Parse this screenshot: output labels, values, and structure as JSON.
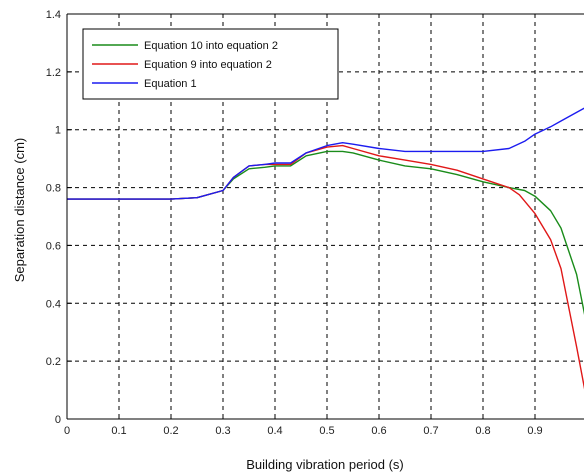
{
  "chart_data": {
    "type": "line",
    "xlabel": "Building vibration period (s)",
    "ylabel": "Separation distance (cm)",
    "xlim": [
      0,
      1.0
    ],
    "ylim": [
      0,
      1.4
    ],
    "x_ticks": [
      "0",
      "0.1",
      "0.2",
      "0.3",
      "0.4",
      "0.5",
      "0.6",
      "0.7",
      "0.8",
      "0.9"
    ],
    "y_ticks": [
      "0",
      "0.2",
      "0.4",
      "0.6",
      "0.8",
      "1",
      "1.2",
      "1.4"
    ],
    "grid": true,
    "legend_position": "top-left",
    "series": [
      {
        "name": "Equation 10 into equation 2",
        "color": "#1a8c1a",
        "x": [
          0,
          0.1,
          0.2,
          0.25,
          0.3,
          0.32,
          0.35,
          0.38,
          0.4,
          0.43,
          0.46,
          0.5,
          0.53,
          0.55,
          0.6,
          0.65,
          0.7,
          0.75,
          0.8,
          0.85,
          0.88,
          0.9,
          0.93,
          0.95,
          0.98,
          1.0
        ],
        "y": [
          0.76,
          0.76,
          0.76,
          0.765,
          0.79,
          0.83,
          0.865,
          0.87,
          0.875,
          0.875,
          0.91,
          0.925,
          0.925,
          0.92,
          0.895,
          0.875,
          0.865,
          0.845,
          0.82,
          0.8,
          0.79,
          0.77,
          0.72,
          0.66,
          0.5,
          0.32
        ]
      },
      {
        "name": "Equation 9 into equation 2",
        "color": "#e01818",
        "x": [
          0,
          0.1,
          0.2,
          0.25,
          0.3,
          0.32,
          0.35,
          0.38,
          0.4,
          0.43,
          0.46,
          0.5,
          0.53,
          0.55,
          0.6,
          0.65,
          0.7,
          0.75,
          0.8,
          0.85,
          0.87,
          0.9,
          0.93,
          0.95,
          0.98,
          1.0
        ],
        "y": [
          0.76,
          0.76,
          0.76,
          0.765,
          0.79,
          0.835,
          0.875,
          0.88,
          0.88,
          0.88,
          0.92,
          0.94,
          0.945,
          0.935,
          0.91,
          0.895,
          0.88,
          0.86,
          0.83,
          0.8,
          0.775,
          0.71,
          0.62,
          0.52,
          0.25,
          0.06
        ]
      },
      {
        "name": "Equation 1",
        "color": "#1c1cf0",
        "x": [
          0,
          0.1,
          0.2,
          0.25,
          0.3,
          0.32,
          0.35,
          0.38,
          0.4,
          0.43,
          0.46,
          0.5,
          0.53,
          0.55,
          0.6,
          0.65,
          0.7,
          0.75,
          0.8,
          0.85,
          0.88,
          0.9,
          0.93,
          0.95,
          0.98,
          1.0
        ],
        "y": [
          0.76,
          0.76,
          0.76,
          0.765,
          0.79,
          0.835,
          0.875,
          0.88,
          0.885,
          0.885,
          0.92,
          0.945,
          0.955,
          0.95,
          0.935,
          0.925,
          0.925,
          0.925,
          0.925,
          0.935,
          0.96,
          0.985,
          1.01,
          1.03,
          1.06,
          1.08
        ]
      }
    ]
  }
}
